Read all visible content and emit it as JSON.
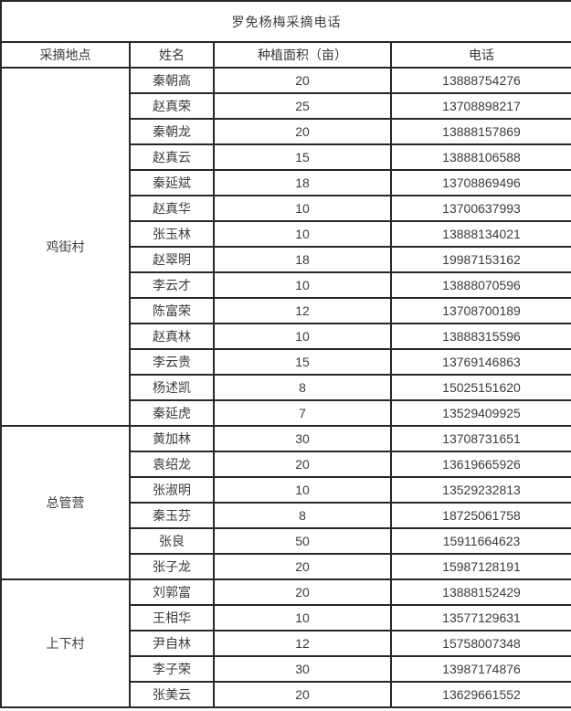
{
  "title": "罗免杨梅采摘电话",
  "columns": [
    "采摘地点",
    "姓名",
    "种植面积（亩）",
    "电话"
  ],
  "groups": [
    {
      "location": "鸡街村",
      "rows": [
        {
          "name": "秦朝高",
          "area": 20,
          "phone": "13888754276"
        },
        {
          "name": "赵真荣",
          "area": 25,
          "phone": "13708898217"
        },
        {
          "name": "秦朝龙",
          "area": 20,
          "phone": "13888157869"
        },
        {
          "name": "赵真云",
          "area": 15,
          "phone": "13888106588"
        },
        {
          "name": "秦延斌",
          "area": 18,
          "phone": "13708869496"
        },
        {
          "name": "赵真华",
          "area": 10,
          "phone": "13700637993"
        },
        {
          "name": "张玉林",
          "area": 10,
          "phone": "13888134021"
        },
        {
          "name": "赵翠明",
          "area": 18,
          "phone": "19987153162"
        },
        {
          "name": "李云才",
          "area": 10,
          "phone": "13888070596"
        },
        {
          "name": "陈富荣",
          "area": 12,
          "phone": "13708700189"
        },
        {
          "name": "赵真林",
          "area": 10,
          "phone": "13888315596"
        },
        {
          "name": "李云贵",
          "area": 15,
          "phone": "13769146863"
        },
        {
          "name": "杨述凯",
          "area": 8,
          "phone": "15025151620"
        },
        {
          "name": "秦延虎",
          "area": 7,
          "phone": "13529409925"
        }
      ]
    },
    {
      "location": "总管营",
      "rows": [
        {
          "name": "黄加林",
          "area": 30,
          "phone": "13708731651"
        },
        {
          "name": "袁绍龙",
          "area": 20,
          "phone": "13619665926"
        },
        {
          "name": "张淑明",
          "area": 10,
          "phone": "13529232813"
        },
        {
          "name": "秦玉芬",
          "area": 8,
          "phone": "18725061758"
        },
        {
          "name": "张良",
          "area": 50,
          "phone": "15911664623"
        },
        {
          "name": "张子龙",
          "area": 20,
          "phone": "15987128191"
        }
      ]
    },
    {
      "location": "上下村",
      "rows": [
        {
          "name": "刘郭富",
          "area": 20,
          "phone": "13888152429"
        },
        {
          "name": "王相华",
          "area": 10,
          "phone": "13577129631"
        },
        {
          "name": "尹自林",
          "area": 12,
          "phone": "15758007348"
        },
        {
          "name": "李子荣",
          "area": 30,
          "phone": "13987174876"
        },
        {
          "name": "张美云",
          "area": 20,
          "phone": "13629661552"
        }
      ]
    }
  ]
}
